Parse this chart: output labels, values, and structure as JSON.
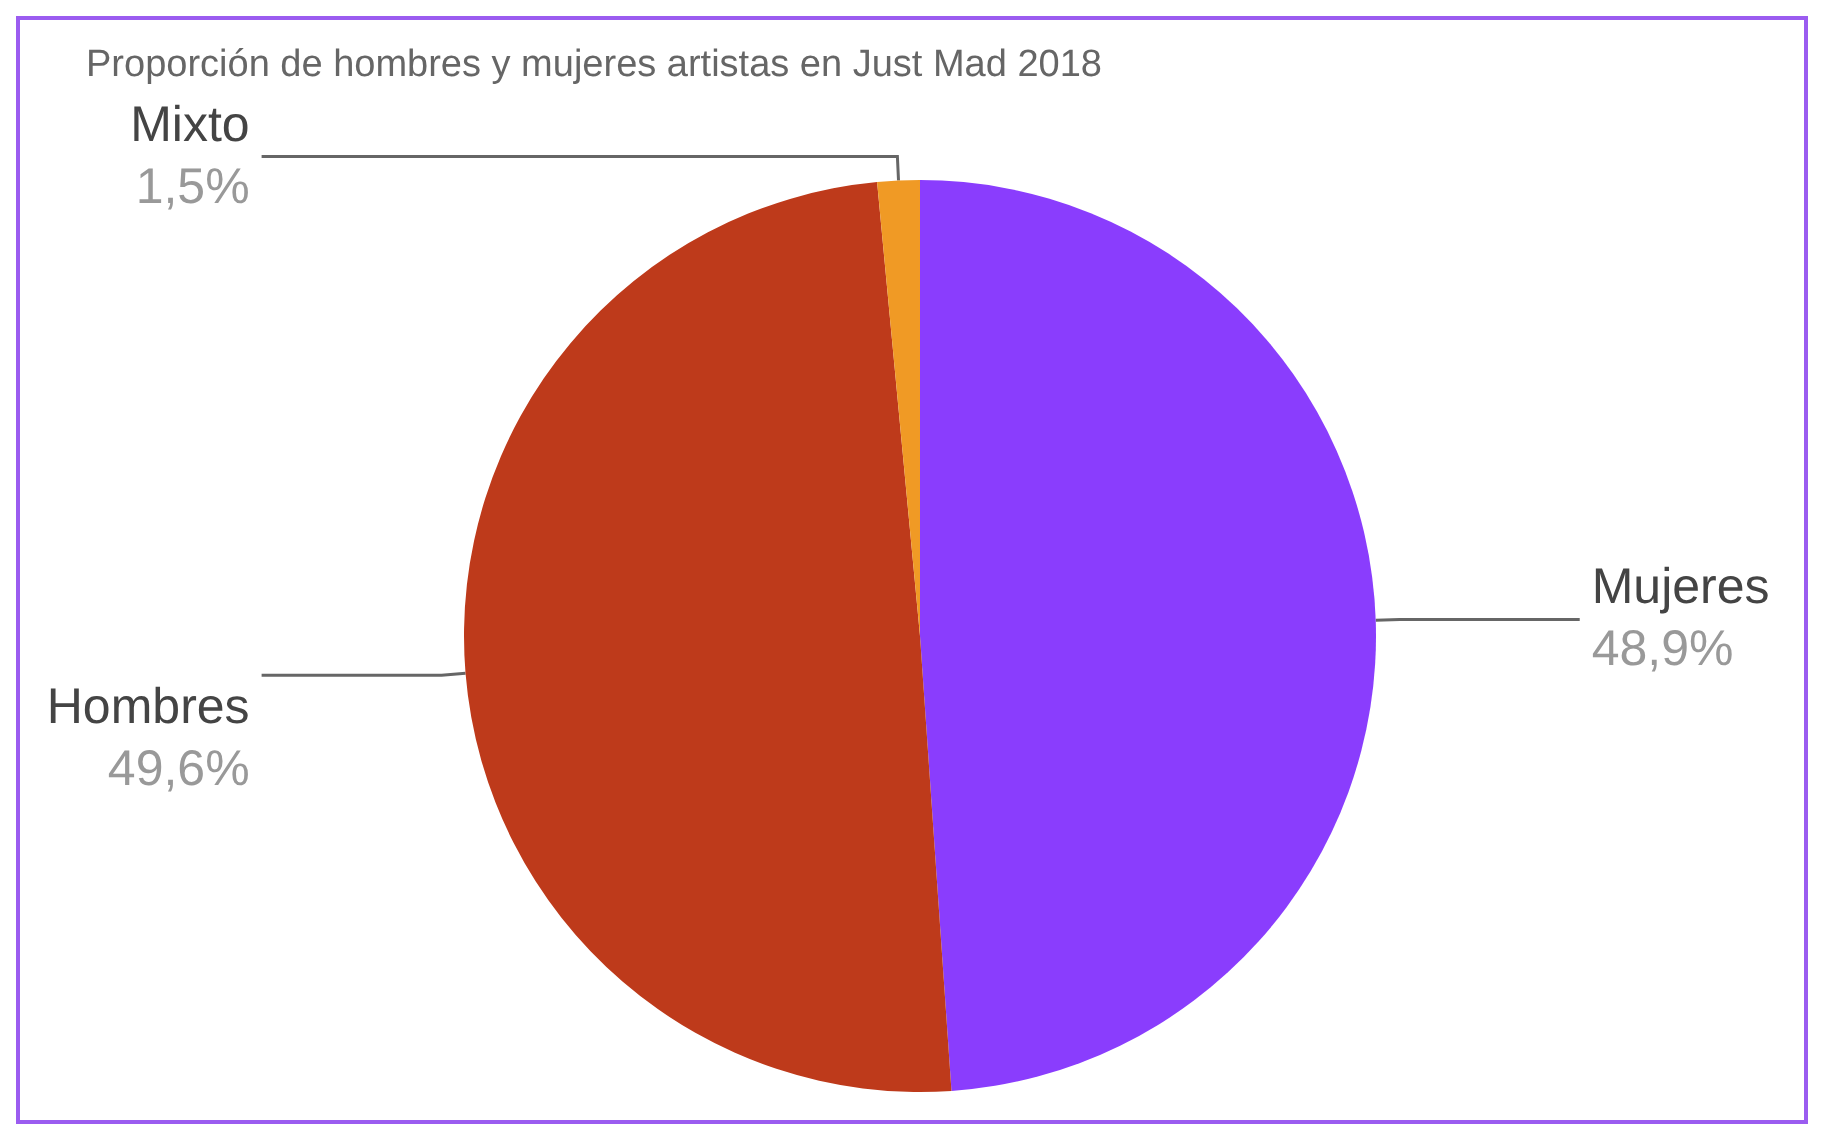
{
  "chart_data": {
    "type": "pie",
    "title": "Proporción de hombres y mujeres artistas en Just Mad 2018",
    "categories": [
      "Mujeres",
      "Hombres",
      "Mixto"
    ],
    "values": [
      48.9,
      49.6,
      1.5
    ],
    "colors": [
      "#8a3dfd",
      "#be3a1b",
      "#f09a25"
    ],
    "value_labels": [
      "48,9%",
      "49,6%",
      "1,5%"
    ],
    "legend": false
  }
}
